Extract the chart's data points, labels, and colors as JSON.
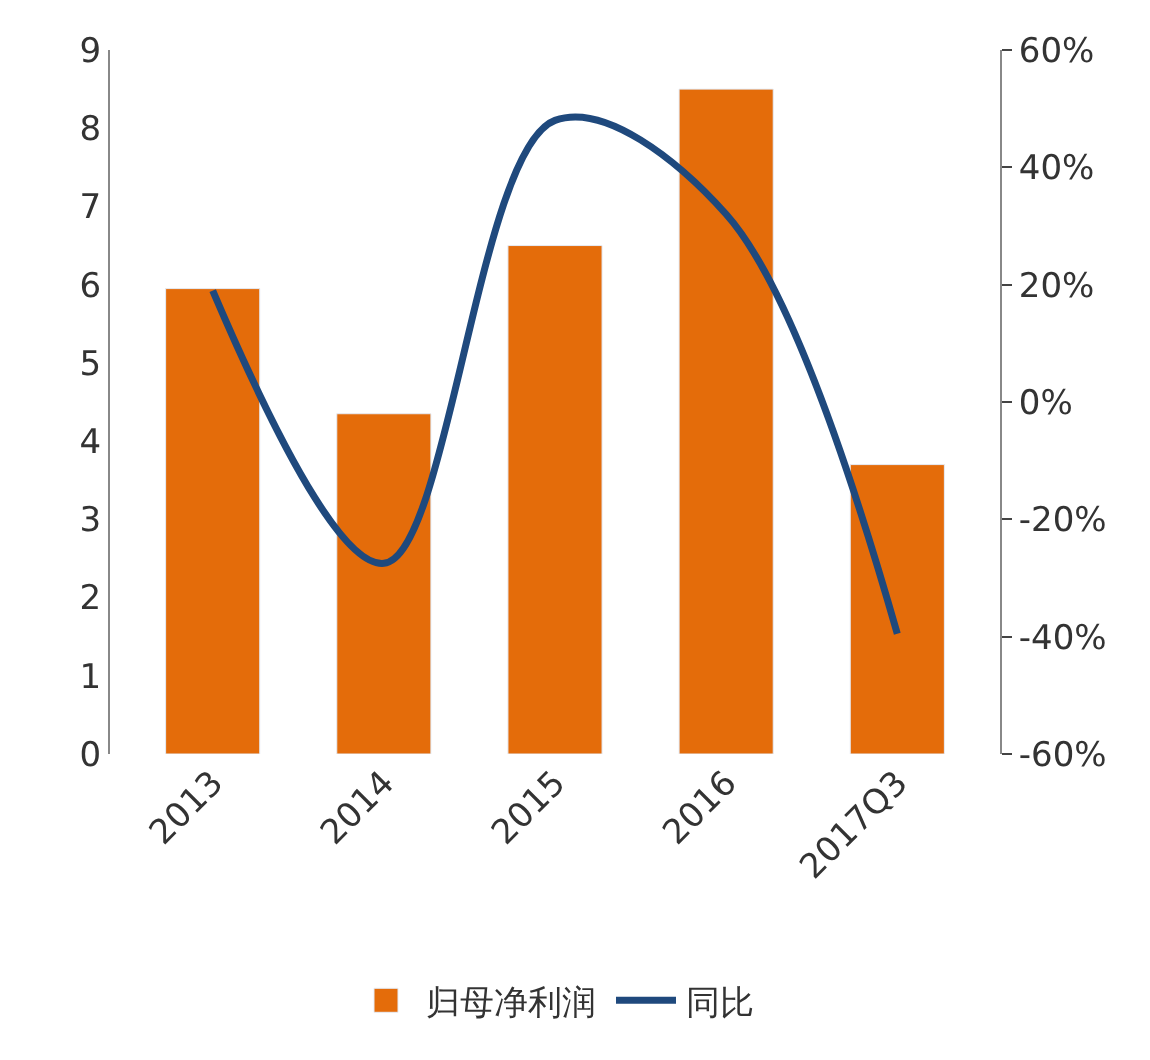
{
  "chart_data": {
    "type": "bar",
    "categories": [
      "2013",
      "2014",
      "2015",
      "2016",
      "2017Q3"
    ],
    "series": [
      {
        "name": "归母净利润",
        "color": "#e46c0a",
        "values": [
          5.95,
          4.35,
          6.5,
          8.5,
          3.7
        ]
      },
      {
        "name": "同比",
        "type": "line",
        "axis": "y2",
        "color": "#1f497d",
        "values": [
          19,
          -27.5,
          48,
          32,
          -39.5
        ]
      }
    ],
    "ylim": [
      0,
      9
    ],
    "yticks": [
      0,
      1,
      2,
      3,
      4,
      5,
      6,
      7,
      8,
      9
    ],
    "y2lim": [
      -60,
      60
    ],
    "y2ticks": [
      {
        "value": -60,
        "label": "-60%"
      },
      {
        "value": -40,
        "label": "-40%"
      },
      {
        "value": -20,
        "label": "-20%"
      },
      {
        "value": 0,
        "label": "0%"
      },
      {
        "value": 20,
        "label": "20%"
      },
      {
        "value": 40,
        "label": "40%"
      },
      {
        "value": 60,
        "label": "60%"
      }
    ],
    "legend": "bottom",
    "marker": "none",
    "line_style": "solid"
  }
}
